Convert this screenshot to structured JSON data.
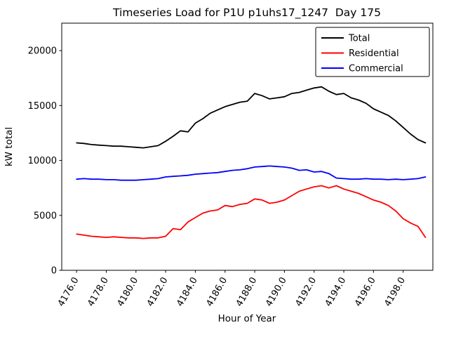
{
  "figure": {
    "background": "#ffffff"
  },
  "chart_data": {
    "type": "line",
    "title": "Timeseries Load for P1U p1uhs17_1247  Day 175",
    "xlabel": "Hour of Year",
    "ylabel": "kW total",
    "xlim": [
      4175.0,
      4200.0
    ],
    "ylim": [
      0,
      22500
    ],
    "yticks": [
      0,
      5000,
      10000,
      15000,
      20000
    ],
    "xticks": [
      4176,
      4178,
      4180,
      4182,
      4184,
      4186,
      4188,
      4190,
      4192,
      4194,
      4196,
      4198
    ],
    "xtick_labels": [
      "4176.0",
      "4178.0",
      "4180.0",
      "4182.0",
      "4184.0",
      "4186.0",
      "4188.0",
      "4190.0",
      "4192.0",
      "4194.0",
      "4196.0",
      "4198.0"
    ],
    "legend_position": "upper right",
    "grid": false,
    "x": [
      4176,
      4176.5,
      4177,
      4177.5,
      4178,
      4178.5,
      4179,
      4179.5,
      4180,
      4180.5,
      4181,
      4181.5,
      4182,
      4182.5,
      4183,
      4183.5,
      4184,
      4184.5,
      4185,
      4185.5,
      4186,
      4186.5,
      4187,
      4187.5,
      4188,
      4188.5,
      4189,
      4189.5,
      4190,
      4190.5,
      4191,
      4191.5,
      4192,
      4192.5,
      4193,
      4193.5,
      4194,
      4194.5,
      4195,
      4195.5,
      4196,
      4196.5,
      4197,
      4197.5,
      4198,
      4198.5,
      4199,
      4199.5
    ],
    "series": [
      {
        "name": "Total",
        "color": "#000000",
        "values": [
          11600,
          11550,
          11450,
          11400,
          11350,
          11300,
          11300,
          11250,
          11200,
          11150,
          11250,
          11350,
          11750,
          12200,
          12700,
          12600,
          13400,
          13800,
          14300,
          14600,
          14900,
          15100,
          15300,
          15400,
          16100,
          15900,
          15600,
          15700,
          15800,
          16100,
          16200,
          16400,
          16600,
          16700,
          16300,
          16000,
          16100,
          15700,
          15500,
          15200,
          14700,
          14400,
          14100,
          13600,
          13000,
          12400,
          11900,
          11600
        ]
      },
      {
        "name": "Residential",
        "color": "#ff0000",
        "values": [
          3300,
          3200,
          3100,
          3050,
          3000,
          3050,
          3000,
          2950,
          2950,
          2900,
          2950,
          2950,
          3100,
          3800,
          3700,
          4400,
          4800,
          5200,
          5400,
          5500,
          5900,
          5800,
          6000,
          6100,
          6500,
          6400,
          6100,
          6200,
          6400,
          6800,
          7200,
          7400,
          7600,
          7700,
          7500,
          7700,
          7400,
          7200,
          7000,
          6700,
          6400,
          6200,
          5900,
          5400,
          4700,
          4300,
          4000,
          3000
        ]
      },
      {
        "name": "Commercial",
        "color": "#0000ff",
        "values": [
          8300,
          8350,
          8300,
          8300,
          8250,
          8250,
          8200,
          8200,
          8200,
          8250,
          8300,
          8350,
          8500,
          8550,
          8600,
          8650,
          8750,
          8800,
          8850,
          8900,
          9000,
          9100,
          9150,
          9250,
          9400,
          9450,
          9500,
          9450,
          9400,
          9300,
          9100,
          9150,
          8950,
          9000,
          8800,
          8400,
          8350,
          8300,
          8300,
          8350,
          8300,
          8300,
          8250,
          8300,
          8250,
          8300,
          8350,
          8500
        ]
      }
    ]
  }
}
